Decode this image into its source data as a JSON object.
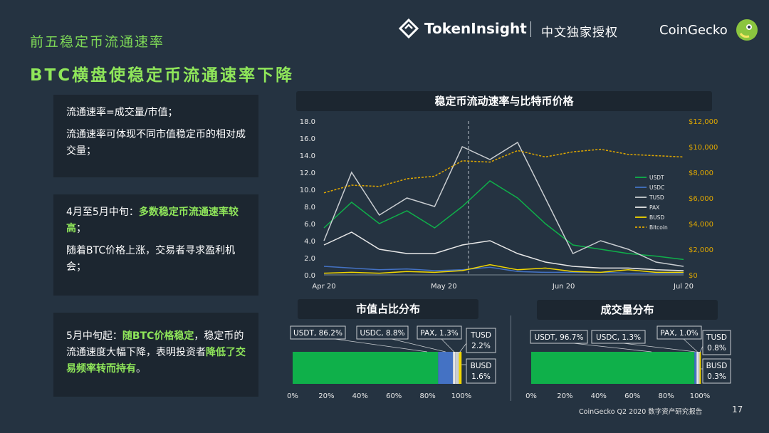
{
  "header": {
    "subtitle": "前五稳定币流通速率",
    "headline": "BTC横盘使稳定币流通速率下降",
    "brand": "TokenInsight",
    "auth": "中文独家授权",
    "partner": "CoinGecko"
  },
  "boxes": {
    "b1": {
      "p1": "流通速率=成交量/市值；",
      "p2": "流通速率可体现不同市值稳定币的相对成交量；"
    },
    "b2": {
      "p1_pre": "4月至5月中旬：",
      "p1_hl": "多数稳定币流通速率较高",
      "p1_post": "；",
      "p2": "随着BTC价格上涨，交易者寻求盈利机会；"
    },
    "b3": {
      "pre": "5月中旬起：",
      "hl1": "随BTC价格稳定",
      "mid": "，稳定币的流通速度大幅下降，表明投资者",
      "hl2": "降低了交易频率转而持有",
      "post": "。"
    }
  },
  "footer": {
    "text": "CoinGecko Q2 2020 数字资产研究报告",
    "page": "17"
  },
  "colors": {
    "usdt": "#0fb04a",
    "usdc": "#4472c4",
    "tusd": "#c9cdd1",
    "pax": "#e8e8e8",
    "busd": "#f2d600",
    "bitcoin": "#e0a800",
    "bg": "#253341"
  },
  "chart_data": [
    {
      "type": "line",
      "title": "稳定币流动速率与比特币价格",
      "x_ticks": [
        "Apr 20",
        "May 20",
        "Jun 20",
        "Jul 20"
      ],
      "x": [
        "Apr 1",
        "Apr 7",
        "Apr 14",
        "Apr 21",
        "Apr 28",
        "May 5",
        "May 12",
        "May 19",
        "May 26",
        "Jun 2",
        "Jun 9",
        "Jun 16",
        "Jun 23",
        "Jun 30"
      ],
      "y_left_ticks": [
        "0.0",
        "2.0",
        "4.0",
        "6.0",
        "8.0",
        "10.0",
        "12.0",
        "14.0",
        "16.0",
        "18.0"
      ],
      "y_left_range": [
        0,
        18
      ],
      "y_right_ticks": [
        "$0",
        "$2,000",
        "$4,000",
        "$6,000",
        "$8,000",
        "$10,000",
        "$12,000"
      ],
      "y_right_range": [
        0,
        12000
      ],
      "series": [
        {
          "name": "USDT",
          "axis": "left",
          "values": [
            5.5,
            8.5,
            6.0,
            7.5,
            5.5,
            8.0,
            11.0,
            9.0,
            6.0,
            3.5,
            3.0,
            2.5,
            2.2,
            1.8
          ]
        },
        {
          "name": "USDC",
          "axis": "left",
          "values": [
            1.0,
            0.8,
            0.6,
            0.7,
            0.5,
            0.6,
            0.9,
            0.4,
            0.3,
            0.3,
            0.3,
            0.2,
            0.2,
            0.2
          ]
        },
        {
          "name": "TUSD",
          "axis": "left",
          "values": [
            4.0,
            12.0,
            7.0,
            9.0,
            8.0,
            15.0,
            13.5,
            15.5,
            9.0,
            2.5,
            4.0,
            3.0,
            1.5,
            1.0
          ]
        },
        {
          "name": "PAX",
          "axis": "left",
          "values": [
            3.5,
            5.0,
            3.0,
            2.5,
            2.5,
            3.5,
            4.0,
            2.5,
            1.5,
            1.0,
            0.8,
            0.8,
            0.6,
            0.5
          ]
        },
        {
          "name": "BUSD",
          "axis": "left",
          "values": [
            0.2,
            0.3,
            0.2,
            0.4,
            0.3,
            0.5,
            1.2,
            0.6,
            0.8,
            0.4,
            0.3,
            0.6,
            0.3,
            0.3
          ]
        },
        {
          "name": "Bitcoin",
          "axis": "right",
          "values": [
            6400,
            7000,
            6900,
            7500,
            7700,
            8900,
            8800,
            9700,
            9200,
            9600,
            9800,
            9400,
            9300,
            9200
          ]
        }
      ],
      "annotations": [
        "vertical dashed line around May 11"
      ]
    },
    {
      "type": "bar",
      "title": "市值占比分布",
      "orientation": "horizontal-stacked",
      "x_ticks": [
        "0%",
        "20%",
        "40%",
        "60%",
        "80%",
        "100%"
      ],
      "series": [
        {
          "name": "USDT",
          "label": "USDT, 86.2%",
          "value": 86.2
        },
        {
          "name": "USDC",
          "label": "USDC, 8.8%",
          "value": 8.8
        },
        {
          "name": "PAX",
          "label": "PAX, 1.3%",
          "value": 1.3
        },
        {
          "name": "TUSD",
          "label1": "TUSD",
          "label2": "2.2%",
          "value": 2.2
        },
        {
          "name": "BUSD",
          "label1": "BUSD",
          "label2": "1.6%",
          "value": 1.6
        }
      ]
    },
    {
      "type": "bar",
      "title": "成交量分布",
      "orientation": "horizontal-stacked",
      "x_ticks": [
        "0%",
        "20%",
        "40%",
        "60%",
        "80%",
        "100%"
      ],
      "series": [
        {
          "name": "USDT",
          "label": "USDT, 96.7%",
          "value": 96.7
        },
        {
          "name": "USDC",
          "label": "USDC, 1.3%",
          "value": 1.3
        },
        {
          "name": "PAX",
          "label": "PAX, 1.0%",
          "value": 1.0
        },
        {
          "name": "TUSD",
          "label1": "TUSD",
          "label2": "0.8%",
          "value": 0.8
        },
        {
          "name": "BUSD",
          "label1": "BUSD",
          "label2": "0.3%",
          "value": 0.3
        }
      ]
    }
  ]
}
